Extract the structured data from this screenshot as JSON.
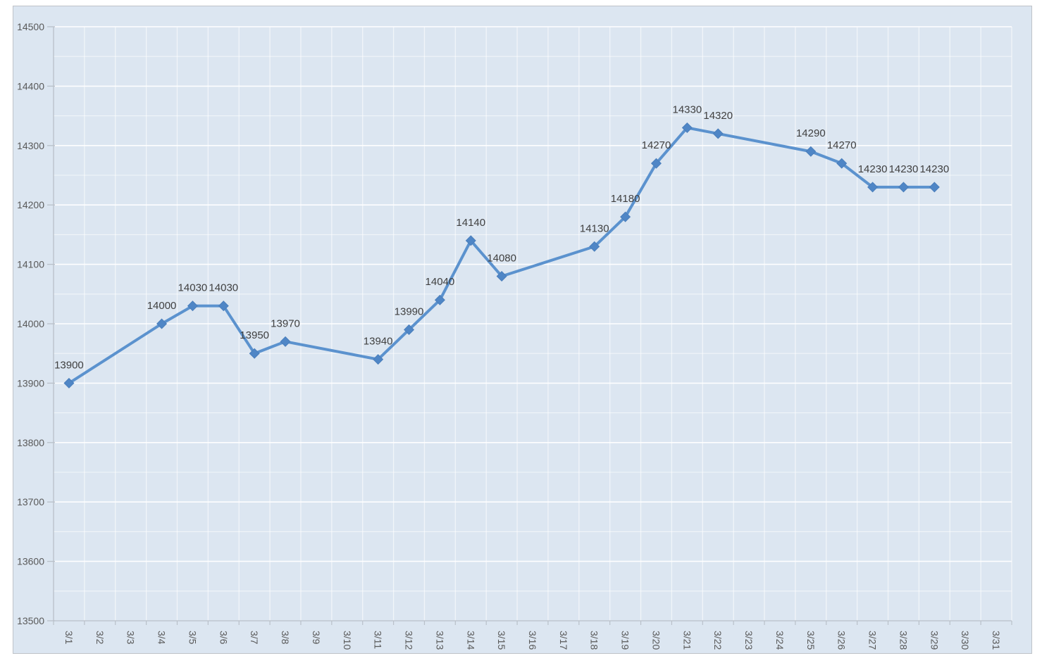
{
  "window": {
    "background_color": "#ffffff"
  },
  "chart": {
    "area_background_color": "#dce6f1",
    "frame_border_color": "#bfc3c8",
    "axis_line_color": "#b9c0c9",
    "grid_major_color": "rgba(255,255,255,0.95)",
    "grid_minor_color": "rgba(255,255,255,0.60)",
    "axis_text_color": "#595959",
    "data_label_color": "#404040",
    "line_color": "#5b92ce",
    "marker_fill_color": "#4f86c6",
    "marker_stroke_color": "#4a7ebb"
  },
  "chart_data": {
    "type": "line",
    "title": "",
    "xlabel": "",
    "ylabel": "",
    "categories": [
      "3/1",
      "3/2",
      "3/3",
      "3/4",
      "3/5",
      "3/6",
      "3/7",
      "3/8",
      "3/9",
      "3/10",
      "3/11",
      "3/12",
      "3/13",
      "3/14",
      "3/15",
      "3/16",
      "3/17",
      "3/18",
      "3/19",
      "3/20",
      "3/21",
      "3/22",
      "3/23",
      "3/24",
      "3/25",
      "3/26",
      "3/27",
      "3/28",
      "3/29",
      "3/30",
      "3/31"
    ],
    "series": [
      {
        "name": "",
        "values": [
          13900,
          null,
          null,
          14000,
          14030,
          14030,
          13950,
          13970,
          null,
          null,
          13940,
          13990,
          14040,
          14140,
          14080,
          null,
          null,
          14130,
          14180,
          14270,
          14330,
          14320,
          null,
          null,
          14290,
          14270,
          14230,
          14230,
          14230,
          null,
          null
        ]
      }
    ],
    "ylim": [
      13500,
      14500
    ],
    "y_major_step": 100,
    "y_minor_step": 50,
    "y_tick_labels": [
      "13500",
      "13600",
      "13700",
      "13800",
      "13900",
      "14000",
      "14100",
      "14200",
      "14300",
      "14400",
      "14500"
    ],
    "grid": "horizontal major+minor, vertical per category",
    "legend_position": "none",
    "marker": "diamond",
    "data_labels_position": "above",
    "x_tick_rotation_deg": 90
  }
}
